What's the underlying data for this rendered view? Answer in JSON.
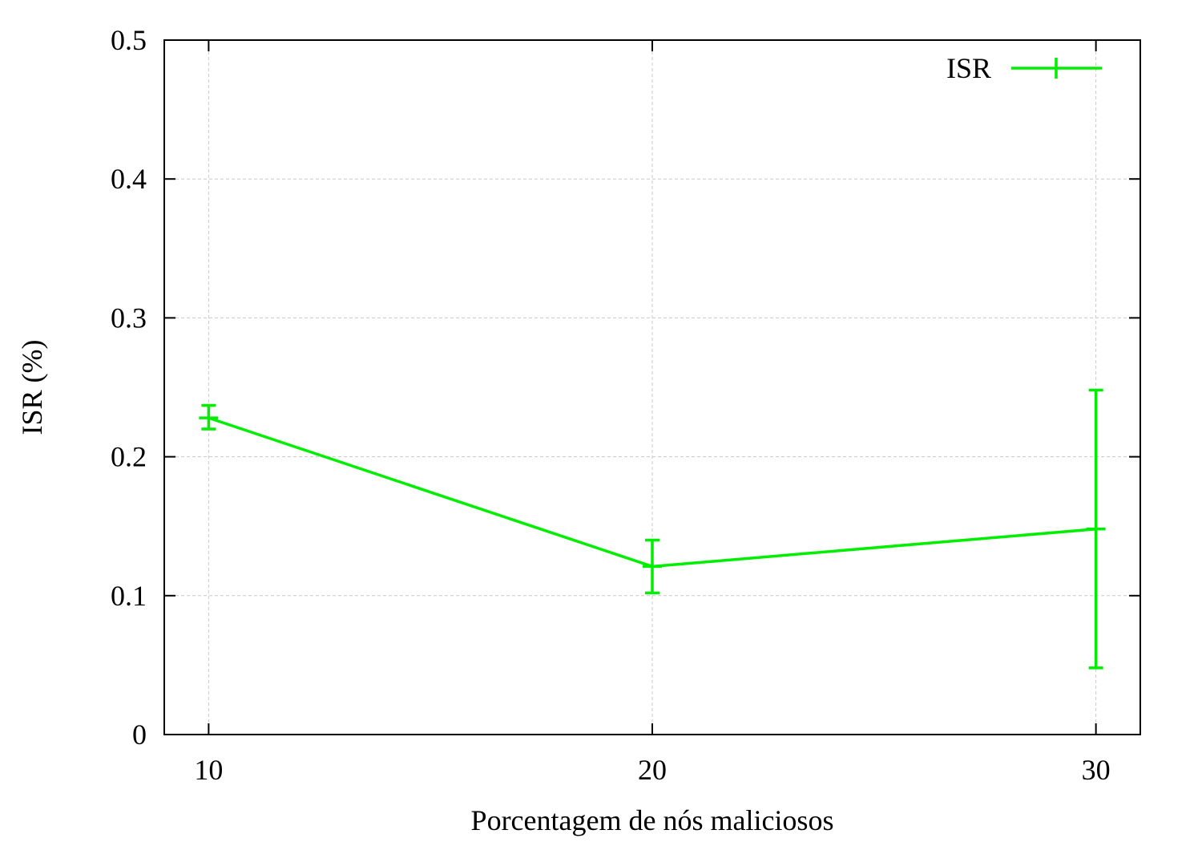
{
  "chart_data": {
    "type": "line",
    "title": "",
    "xlabel": "Porcentagem de nós maliciosos",
    "ylabel": "ISR (%)",
    "x": [
      10,
      20,
      30
    ],
    "xlim": [
      9,
      31
    ],
    "ylim": [
      0,
      0.5
    ],
    "x_ticks": [
      10,
      20,
      30
    ],
    "x_tick_labels": [
      "10",
      "20",
      "30"
    ],
    "y_ticks": [
      0,
      0.1,
      0.2,
      0.3,
      0.4,
      0.5
    ],
    "y_tick_labels": [
      "0",
      "0.1",
      "0.2",
      "0.3",
      "0.4",
      "0.5"
    ],
    "grid": true,
    "legend_position": "top-right",
    "series": [
      {
        "name": "ISR",
        "color": "#00ee00",
        "values": [
          0.228,
          0.121,
          0.148
        ],
        "error_low": [
          0.22,
          0.102,
          0.048
        ],
        "error_high": [
          0.237,
          0.14,
          0.248
        ]
      }
    ]
  }
}
